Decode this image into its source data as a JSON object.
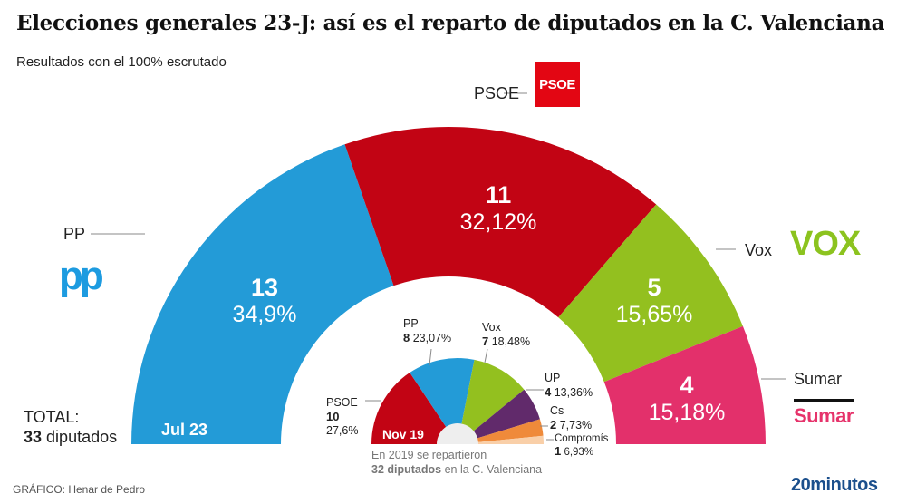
{
  "header": {
    "title": "Elecciones generales 23-J: así es el reparto de diputados en la C. Valenciana",
    "subtitle": "Resultados con el 100% escrutado"
  },
  "chart_data": [
    {
      "type": "pie",
      "variant": "half-donut",
      "label": "Jul 23",
      "total_seats": 33,
      "series": [
        {
          "name": "PP",
          "seats": 13,
          "pct": "34,9%",
          "color": "#239bd7"
        },
        {
          "name": "PSOE",
          "seats": 11,
          "pct": "32,12%",
          "color": "#c20414"
        },
        {
          "name": "Vox",
          "seats": 5,
          "pct": "15,65%",
          "color": "#93c01f"
        },
        {
          "name": "Sumar",
          "seats": 4,
          "pct": "15,18%",
          "color": "#e3306b"
        }
      ]
    },
    {
      "type": "pie",
      "variant": "half-donut",
      "label": "Nov 19",
      "total_seats": 32,
      "series": [
        {
          "name": "PSOE",
          "seats": 10,
          "pct": "27,6%",
          "color": "#c20414"
        },
        {
          "name": "PP",
          "seats": 8,
          "pct": "23,07%",
          "color": "#239bd7"
        },
        {
          "name": "Vox",
          "seats": 7,
          "pct": "18,48%",
          "color": "#93c01f"
        },
        {
          "name": "UP",
          "seats": 4,
          "pct": "13,36%",
          "color": "#612a6b"
        },
        {
          "name": "Cs",
          "seats": 2,
          "pct": "7,73%",
          "color": "#ef8a3a"
        },
        {
          "name": "Compromís",
          "seats": 1,
          "pct": "6,93%",
          "color": "#f9cfa8"
        }
      ]
    }
  ],
  "total": {
    "label": "TOTAL:",
    "seats": "33",
    "unit": "diputados"
  },
  "note2019": {
    "line1": "En 2019 se repartieron",
    "seats_bold": "32 diputados",
    "line2_rest": " en la C. Valenciana"
  },
  "logos": {
    "psoe": "PSOE",
    "pp": "pp",
    "vox": "VOX",
    "sumar": "Sumar"
  },
  "footer": {
    "credit": "GRÁFICO: Henar de Pedro",
    "brand": "20minutos"
  }
}
